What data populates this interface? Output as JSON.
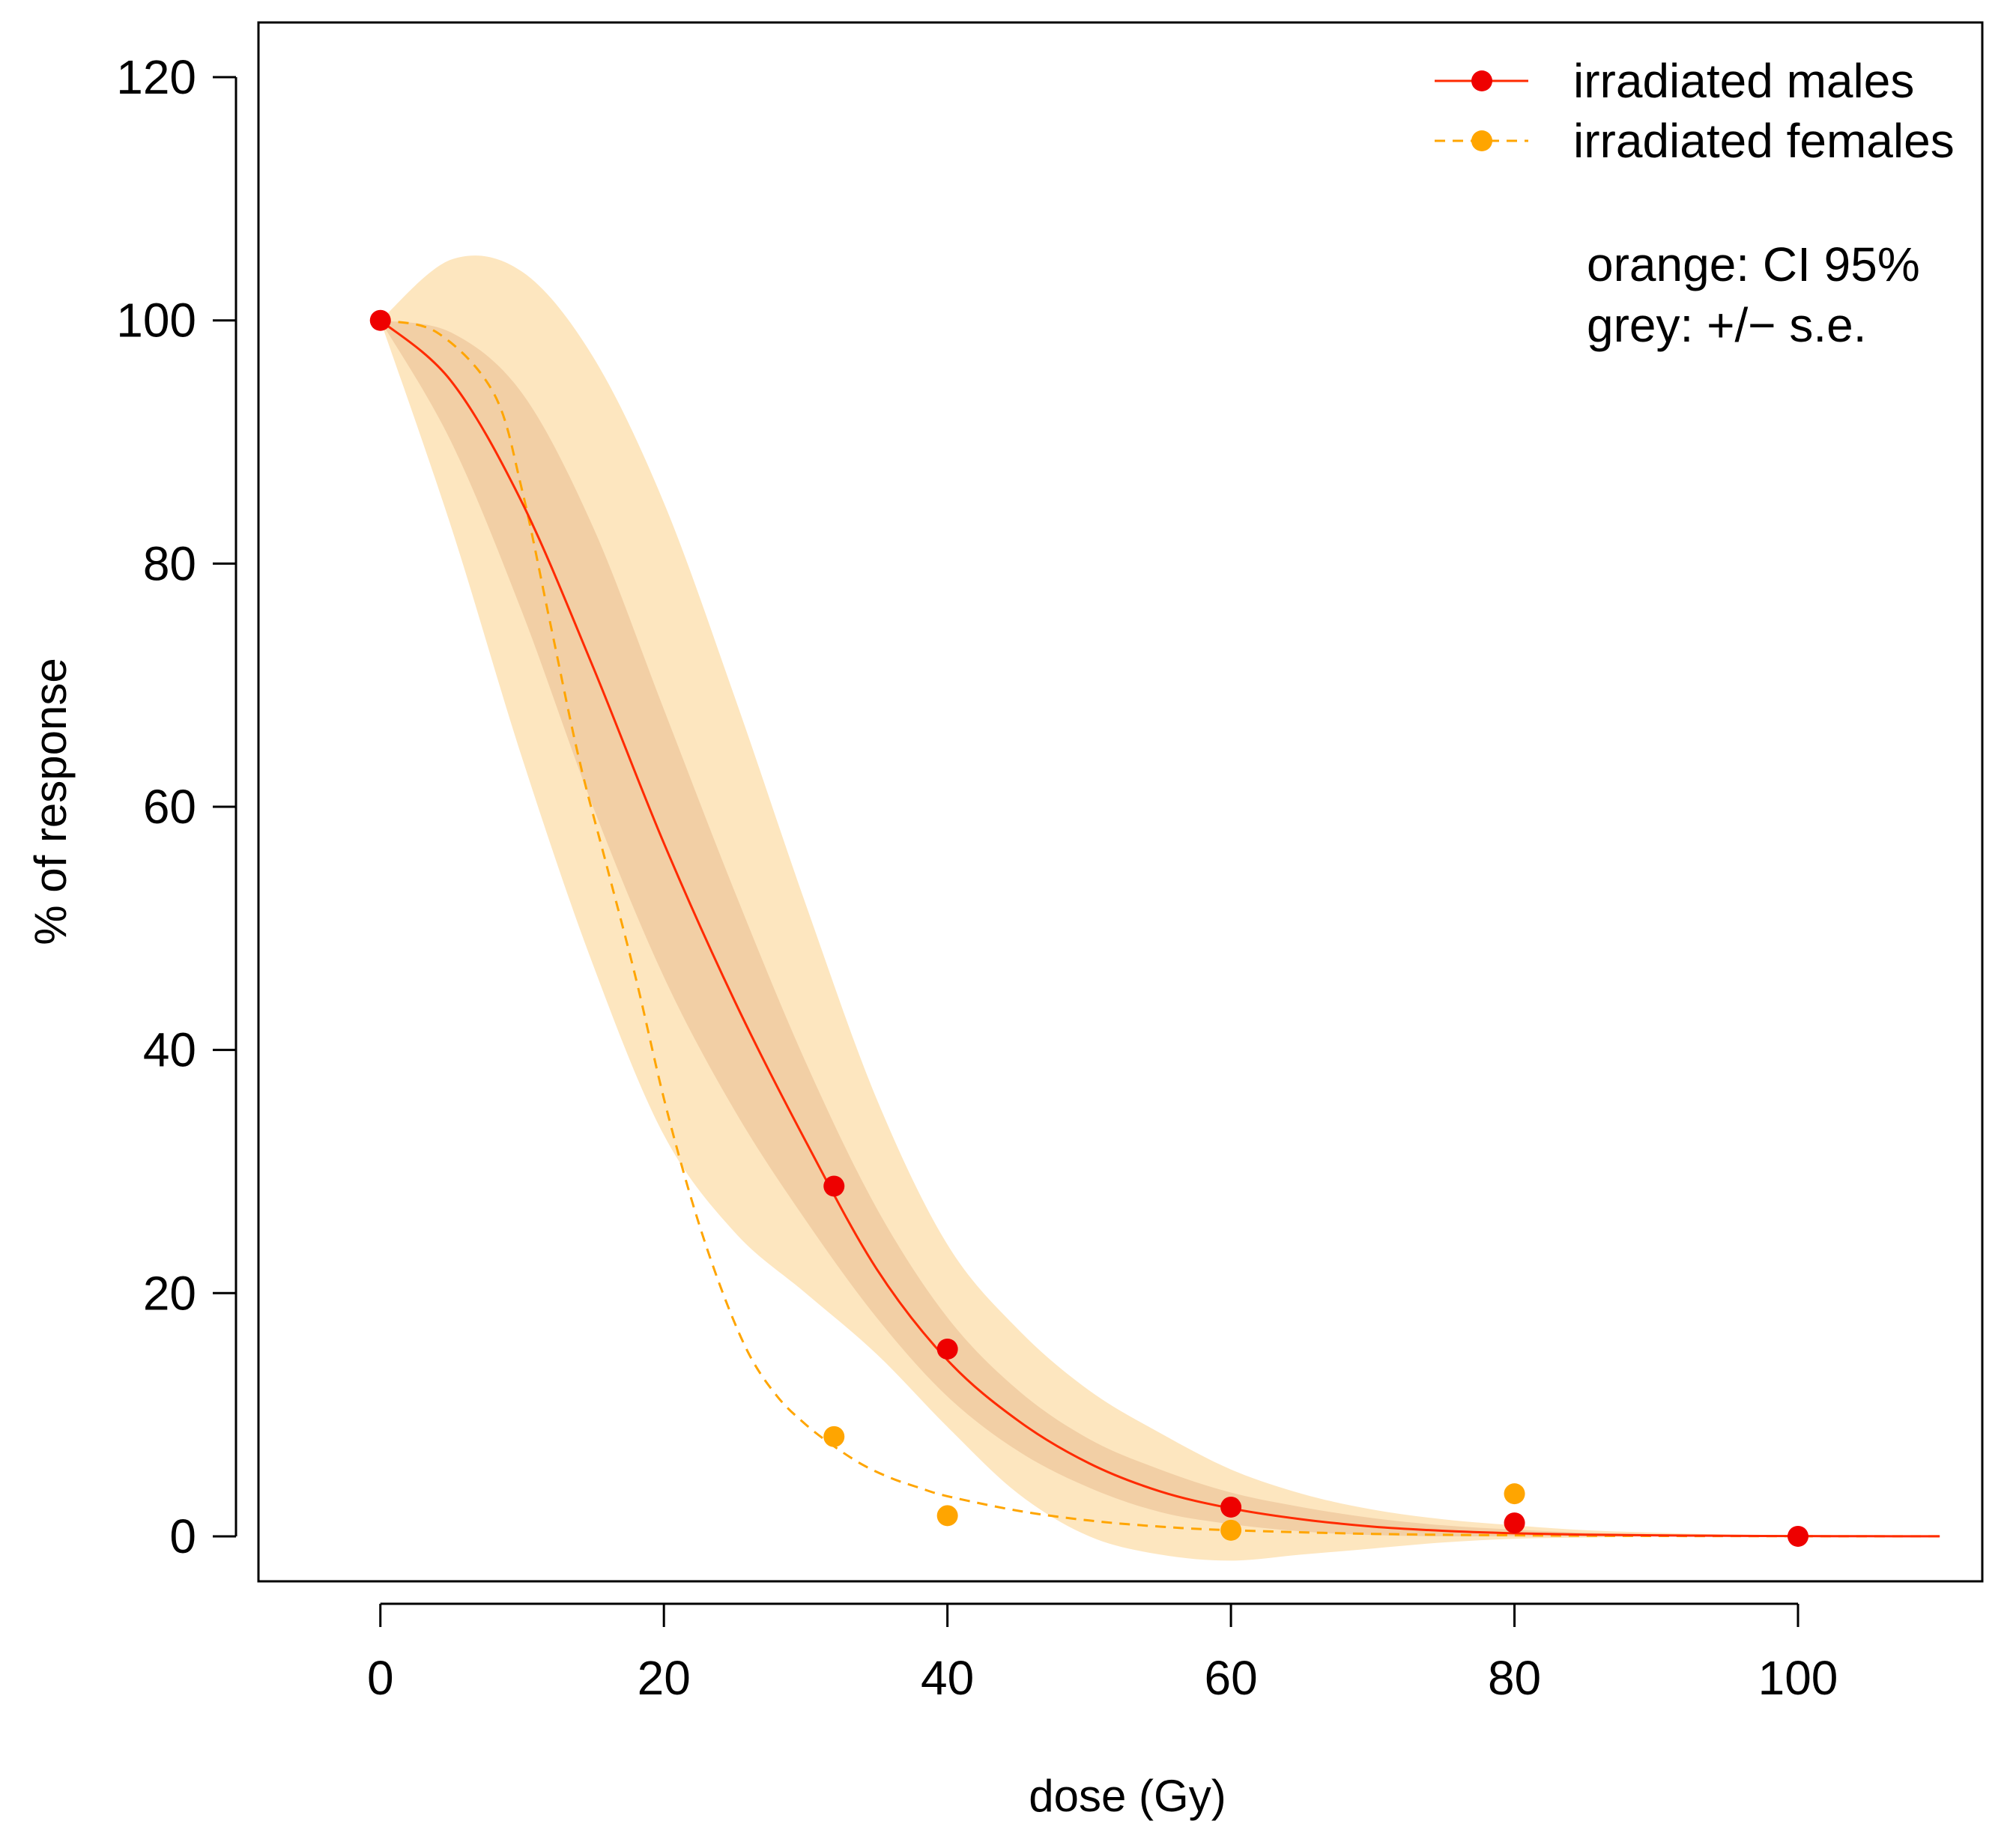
{
  "chart_data": {
    "type": "line",
    "title": "",
    "xlabel": "dose (Gy)",
    "ylabel": "% of response",
    "xlim": [
      -8.6,
      113.0
    ],
    "ylim": [
      -3.7,
      124.5
    ],
    "xticks": [
      0,
      20,
      40,
      60,
      80,
      100
    ],
    "yticks": [
      0,
      20,
      40,
      60,
      80,
      100,
      120
    ],
    "legend_position": "top-right",
    "legend": [
      {
        "label": "irradiated males",
        "color": "#ff2a00",
        "line": "solid"
      },
      {
        "label": "irradiated females",
        "color": "#ffa500",
        "line": "dashed"
      }
    ],
    "notes": [
      "orange: CI 95%",
      "grey: +/− s.e."
    ],
    "colors": {
      "males": "#ff2a00",
      "males_points": "#ee0000",
      "females": "#ffa500",
      "ci_band": "#fde6bf",
      "se_band": "#f2cfa5"
    },
    "series": [
      {
        "name": "irradiated males",
        "points": [
          [
            0,
            100
          ],
          [
            32,
            28.8
          ],
          [
            40,
            15.4
          ],
          [
            60,
            2.4
          ],
          [
            80,
            1.1
          ],
          [
            100,
            0.0
          ]
        ],
        "fit": {
          "x": [
            0,
            5,
            10,
            15,
            20,
            25,
            30,
            35,
            40,
            45,
            50,
            55,
            60,
            65,
            70,
            75,
            80,
            85,
            90,
            95,
            100,
            105,
            110
          ],
          "y": [
            100,
            95,
            85,
            71.5,
            57,
            44,
            32.5,
            22,
            14.5,
            9.5,
            6,
            3.7,
            2.3,
            1.4,
            0.8,
            0.45,
            0.25,
            0.14,
            0.08,
            0.04,
            0.02,
            0.01,
            0.0
          ]
        },
        "ci95": {
          "x": [
            0,
            5,
            10,
            15,
            20,
            25,
            30,
            35,
            40,
            45,
            50,
            55,
            60,
            65,
            70,
            75,
            80,
            85,
            90,
            95,
            100,
            105,
            110
          ],
          "lower": [
            100,
            83,
            64,
            47,
            33,
            25,
            20,
            15,
            9,
            3.5,
            0,
            -1.5,
            -2,
            -1.5,
            -1,
            -0.5,
            -0.2,
            -0.1,
            0,
            0,
            0,
            0,
            0
          ],
          "upper": [
            100,
            105,
            104,
            97,
            85,
            69,
            52,
            36,
            24,
            17,
            12,
            8.5,
            5.5,
            3.5,
            2.2,
            1.4,
            0.9,
            0.5,
            0.3,
            0.15,
            0.07,
            0.03,
            0.01
          ]
        },
        "se": {
          "x": [
            0,
            5,
            10,
            15,
            20,
            25,
            30,
            35,
            40,
            45,
            50,
            55,
            60,
            65,
            70,
            75,
            80,
            85,
            90,
            95,
            100,
            105,
            110
          ],
          "lower": [
            100,
            90,
            76,
            60,
            46,
            35,
            26,
            18,
            11.5,
            7,
            4,
            2,
            1,
            0.4,
            0.1,
            0,
            0,
            0,
            0,
            0,
            0,
            0,
            0
          ],
          "upper": [
            100,
            99,
            94,
            83,
            68,
            53,
            39,
            27,
            18,
            12,
            8,
            5.5,
            3.6,
            2.4,
            1.5,
            0.9,
            0.55,
            0.3,
            0.17,
            0.09,
            0.04,
            0.02,
            0.01
          ]
        }
      },
      {
        "name": "irradiated females",
        "points": [
          [
            32,
            8.2
          ],
          [
            40,
            1.7
          ],
          [
            60,
            0.5
          ],
          [
            80,
            3.5
          ]
        ],
        "fit": {
          "x": [
            0,
            4,
            8,
            10,
            12,
            14,
            16,
            18,
            20,
            22,
            24,
            26,
            28,
            30,
            32,
            34,
            36,
            38,
            40,
            45,
            50,
            55,
            60,
            70,
            80,
            90,
            100,
            110
          ],
          "y": [
            100,
            99,
            94,
            86,
            75,
            64,
            55,
            46,
            36,
            27.5,
            20.5,
            15,
            11.5,
            9.2,
            7.4,
            5.9,
            4.8,
            4.0,
            3.3,
            2.1,
            1.3,
            0.8,
            0.5,
            0.2,
            0.08,
            0.03,
            0.01,
            0.0
          ]
        }
      }
    ]
  }
}
